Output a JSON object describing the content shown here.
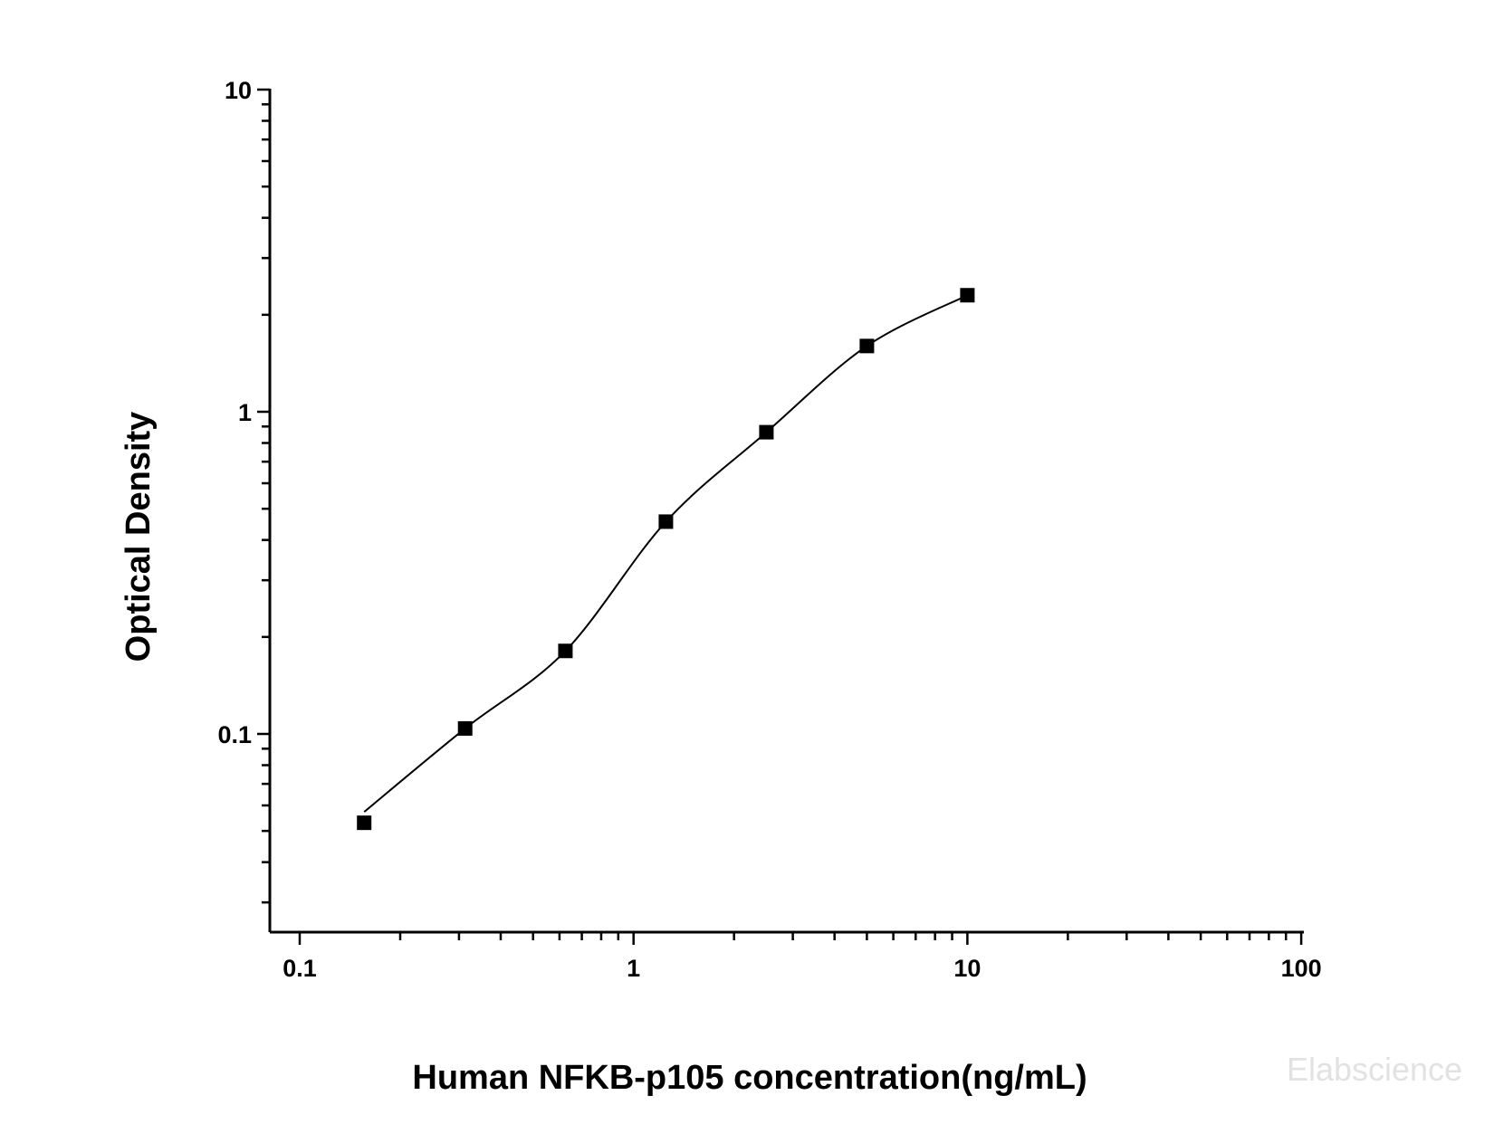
{
  "chart_data": {
    "type": "scatter",
    "title": "",
    "xlabel": "Human  NFKB-p105 concentration(ng/mL)",
    "ylabel": "Optical Density",
    "x_scale": "log",
    "y_scale": "log",
    "xlim": [
      0.1,
      100
    ],
    "ylim": [
      0.025,
      10
    ],
    "x_ticks": [
      {
        "value": 0.1,
        "label": "0.1"
      },
      {
        "value": 1,
        "label": "1"
      },
      {
        "value": 10,
        "label": "10"
      },
      {
        "value": 100,
        "label": "100"
      }
    ],
    "y_ticks": [
      {
        "value": 0.1,
        "label": "0.1"
      },
      {
        "value": 1,
        "label": "1"
      },
      {
        "value": 10,
        "label": "10"
      }
    ],
    "grid": false,
    "legend": "none",
    "series": [
      {
        "x": [
          0.156,
          0.313,
          0.625,
          1.25,
          2.5,
          5,
          10
        ],
        "y": [
          0.053,
          0.104,
          0.181,
          0.456,
          0.864,
          1.6,
          2.3
        ],
        "marker": "square",
        "color": "#000000",
        "fit_line": true
      }
    ],
    "watermark": "Elabscience"
  }
}
